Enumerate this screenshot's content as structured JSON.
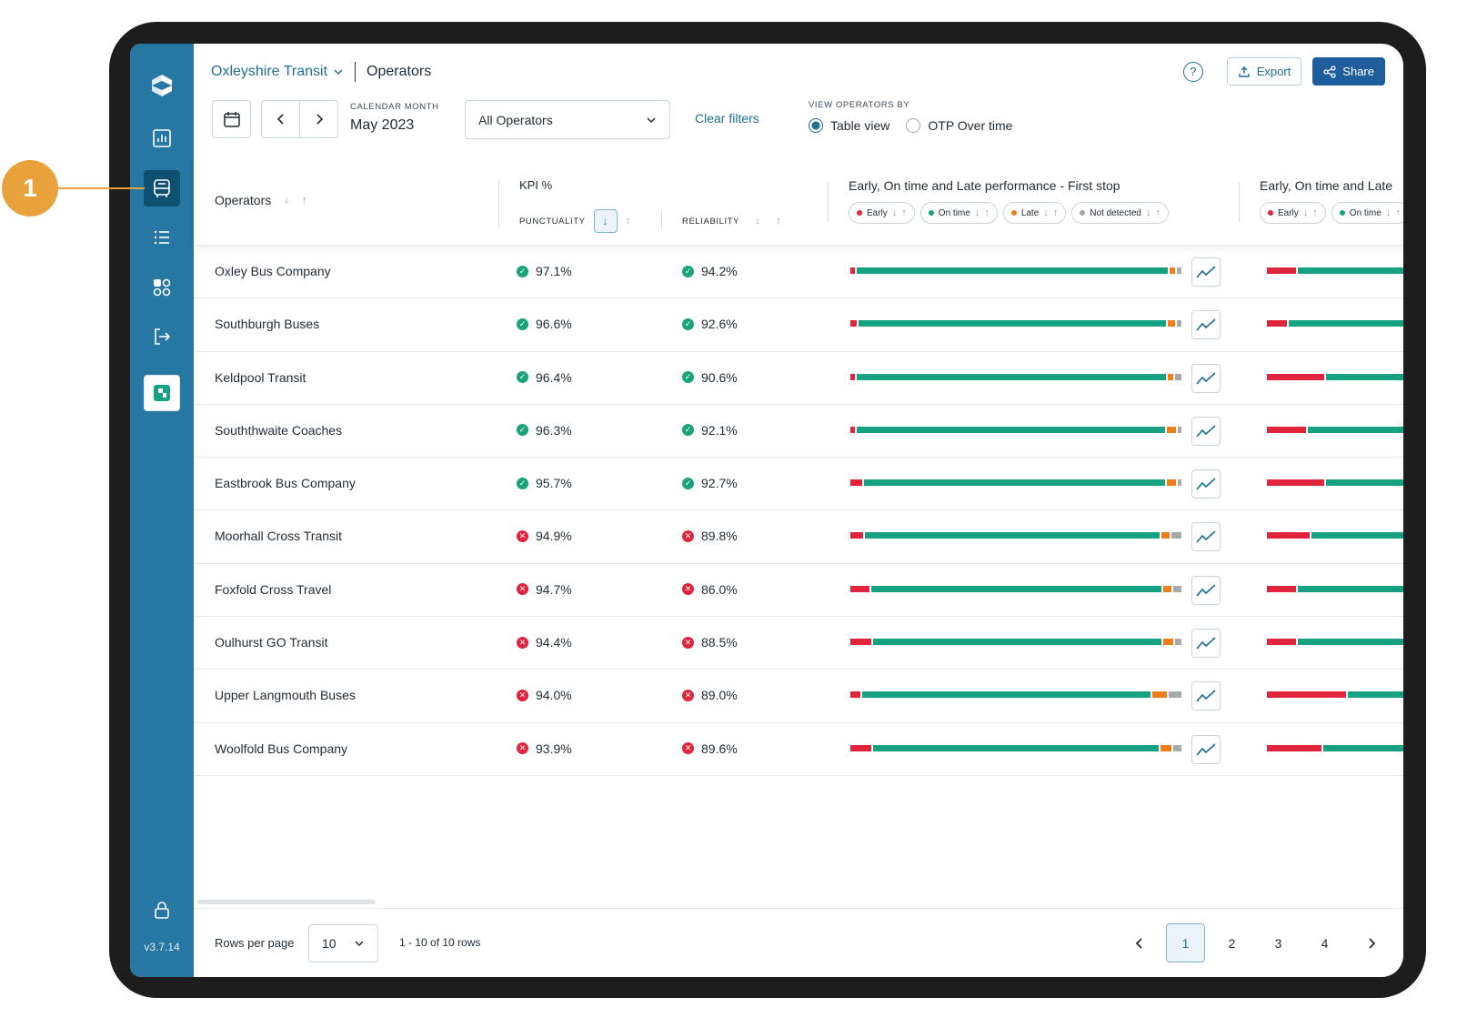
{
  "callout": {
    "number": "1"
  },
  "app": {
    "version": "v3.7.14",
    "org_name": "Oxleyshire Transit",
    "page_title": "Operators"
  },
  "actions": {
    "export_label": "Export",
    "share_label": "Share"
  },
  "filters": {
    "calendar_month_label": "CALENDAR MONTH",
    "calendar_month_value": "May 2023",
    "operator_select_value": "All Operators",
    "clear_filters_label": "Clear filters",
    "view_by_label": "VIEW OPERATORS BY",
    "view_options": [
      {
        "label": "Table view",
        "checked": true
      },
      {
        "label": "OTP Over time",
        "checked": false
      }
    ]
  },
  "table": {
    "col_operators": "Operators",
    "kpi_group": "KPI %",
    "col_punctuality": "PUNCTUALITY",
    "col_reliability": "RELIABILITY",
    "perf_first_title": "Early, On time and Late performance - First stop",
    "perf_second_title": "Early, On time and Late",
    "chips_first": [
      "Early",
      "On time",
      "Late",
      "Not detected"
    ],
    "chips_second": [
      "Early",
      "On time"
    ],
    "colors": {
      "early": "#e0243b",
      "on_time": "#17a183",
      "late": "#ee7d1a",
      "not_detected": "#a8a8a8"
    },
    "rows": [
      {
        "name": "Oxley Bus Company",
        "punctuality": "97.1%",
        "punctuality_ok": true,
        "reliability": "94.2%",
        "reliability_ok": true,
        "first_stop": {
          "early": 1.5,
          "on_time": 95.5,
          "late": 1.5,
          "not_detected": 1.5
        },
        "second_stop": {
          "early": 20,
          "on_time": 80
        }
      },
      {
        "name": "Southburgh Buses",
        "punctuality": "96.6%",
        "punctuality_ok": true,
        "reliability": "92.6%",
        "reliability_ok": true,
        "first_stop": {
          "early": 2.0,
          "on_time": 94.5,
          "late": 2.0,
          "not_detected": 1.5
        },
        "second_stop": {
          "early": 14,
          "on_time": 86
        }
      },
      {
        "name": "Keldpool Transit",
        "punctuality": "96.4%",
        "punctuality_ok": true,
        "reliability": "90.6%",
        "reliability_ok": true,
        "first_stop": {
          "early": 1.5,
          "on_time": 95.0,
          "late": 1.5,
          "not_detected": 2.0
        },
        "second_stop": {
          "early": 40,
          "on_time": 60
        }
      },
      {
        "name": "Souththwaite Coaches",
        "punctuality": "96.3%",
        "punctuality_ok": true,
        "reliability": "92.1%",
        "reliability_ok": true,
        "first_stop": {
          "early": 1.5,
          "on_time": 94.5,
          "late": 3.0,
          "not_detected": 1.0
        },
        "second_stop": {
          "early": 27,
          "on_time": 73
        }
      },
      {
        "name": "Eastbrook Bus Company",
        "punctuality": "95.7%",
        "punctuality_ok": true,
        "reliability": "92.7%",
        "reliability_ok": true,
        "first_stop": {
          "early": 3.5,
          "on_time": 92.5,
          "late": 3.0,
          "not_detected": 1.0
        },
        "second_stop": {
          "early": 40,
          "on_time": 60
        }
      },
      {
        "name": "Moorhall Cross Transit",
        "punctuality": "94.9%",
        "punctuality_ok": false,
        "reliability": "89.8%",
        "reliability_ok": false,
        "first_stop": {
          "early": 4.0,
          "on_time": 90.5,
          "late": 2.5,
          "not_detected": 3.0
        },
        "second_stop": {
          "early": 30,
          "on_time": 70
        }
      },
      {
        "name": "Foxfold Cross Travel",
        "punctuality": "94.7%",
        "punctuality_ok": false,
        "reliability": "86.0%",
        "reliability_ok": false,
        "first_stop": {
          "early": 6.0,
          "on_time": 89.0,
          "late": 2.5,
          "not_detected": 2.5
        },
        "second_stop": {
          "early": 20,
          "on_time": 80
        }
      },
      {
        "name": "Oulhurst GO Transit",
        "punctuality": "94.4%",
        "punctuality_ok": false,
        "reliability": "88.5%",
        "reliability_ok": false,
        "first_stop": {
          "early": 6.5,
          "on_time": 88.5,
          "late": 3.0,
          "not_detected": 2.0
        },
        "second_stop": {
          "early": 20,
          "on_time": 80
        }
      },
      {
        "name": "Upper Langmouth Buses",
        "punctuality": "94.0%",
        "punctuality_ok": false,
        "reliability": "89.0%",
        "reliability_ok": false,
        "first_stop": {
          "early": 3.0,
          "on_time": 88.5,
          "late": 4.5,
          "not_detected": 4.0
        },
        "second_stop": {
          "early": 55,
          "on_time": 45
        }
      },
      {
        "name": "Woolfold Bus Company",
        "punctuality": "93.9%",
        "punctuality_ok": false,
        "reliability": "89.6%",
        "reliability_ok": false,
        "first_stop": {
          "early": 6.5,
          "on_time": 87.5,
          "late": 3.5,
          "not_detected": 2.5
        },
        "second_stop": {
          "early": 38,
          "on_time": 62
        }
      }
    ]
  },
  "footer": {
    "rows_per_page_label": "Rows per page",
    "rows_per_page_value": "10",
    "rows_info": "1 - 10 of 10 rows",
    "pages": [
      "1",
      "2",
      "3",
      "4"
    ],
    "current_page": "1"
  }
}
